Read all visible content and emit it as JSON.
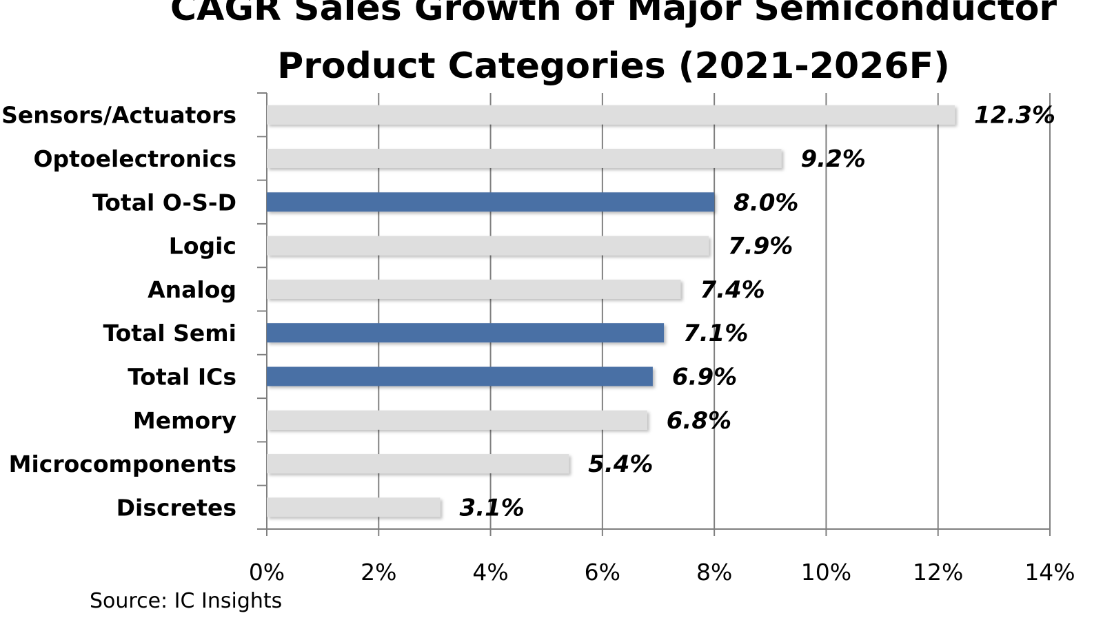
{
  "chart_data": {
    "type": "bar",
    "orientation": "horizontal",
    "title_lines": [
      "CAGR Sales Growth of Major Semiconductor",
      "Product Categories (2021-2026F)"
    ],
    "categories": [
      "Sensors/Actuators",
      "Optoelectronics",
      "Total O-S-D",
      "Logic",
      "Analog",
      "Total Semi",
      "Total ICs",
      "Memory",
      "Microcomponents",
      "Discretes"
    ],
    "values": [
      12.3,
      9.2,
      8.0,
      7.9,
      7.4,
      7.1,
      6.9,
      6.8,
      5.4,
      3.1
    ],
    "value_labels": [
      "12.3%",
      "9.2%",
      "8.0%",
      "7.9%",
      "7.4%",
      "7.1%",
      "6.9%",
      "6.8%",
      "5.4%",
      "3.1%"
    ],
    "highlighted": [
      false,
      false,
      true,
      false,
      false,
      true,
      true,
      false,
      false,
      false
    ],
    "xlim": [
      0,
      14
    ],
    "x_ticks": [
      0,
      2,
      4,
      6,
      8,
      10,
      12,
      14
    ],
    "x_tick_labels": [
      "0%",
      "2%",
      "4%",
      "6%",
      "8%",
      "10%",
      "12%",
      "14%"
    ],
    "xlabel": "",
    "ylabel": "",
    "grid": "vertical",
    "colors": {
      "highlight": "#4a6fa5",
      "normal": "#dedede",
      "grid": "#7f7f7f",
      "axis": "#7f7f7f"
    },
    "source": "Source:  IC Insights"
  }
}
